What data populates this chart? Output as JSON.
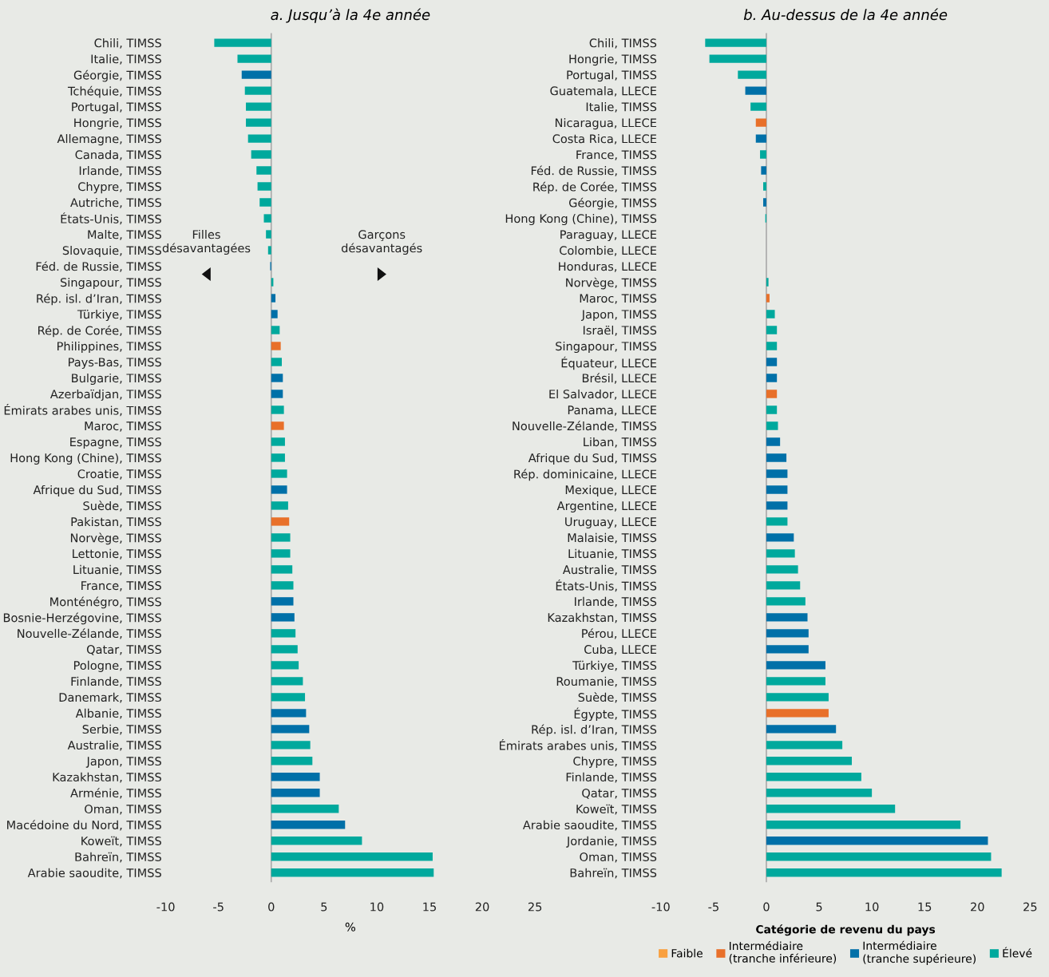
{
  "chart_data": [
    {
      "type": "bar",
      "orientation": "horizontal",
      "title": "a. Jusqu’à la 4e année",
      "xlabel": "%",
      "categories": [
        "Chili, TIMSS",
        "Italie, TIMSS",
        "Géorgie, TIMSS",
        "Tchéquie, TIMSS",
        "Portugal, TIMSS",
        "Hongrie, TIMSS",
        "Allemagne, TIMSS",
        "Canada, TIMSS",
        "Irlande, TIMSS",
        "Chypre, TIMSS",
        "Autriche, TIMSS",
        "États-Unis, TIMSS",
        "Malte, TIMSS",
        "Slovaquie, TIMSS",
        "Féd. de Russie, TIMSS",
        "Singapour, TIMSS",
        "Rép. isl. d’Iran, TIMSS",
        "Türkiye, TIMSS",
        "Rép. de Corée, TIMSS",
        "Philippines, TIMSS",
        "Pays-Bas, TIMSS",
        "Bulgarie, TIMSS",
        "Azerbaïdjan, TIMSS",
        "Émirats arabes unis, TIMSS",
        "Maroc, TIMSS",
        "Espagne, TIMSS",
        "Hong Kong (Chine), TIMSS",
        "Croatie, TIMSS",
        "Afrique du Sud, TIMSS",
        "Suède, TIMSS",
        "Pakistan, TIMSS",
        "Norvège, TIMSS",
        "Lettonie, TIMSS",
        "Lituanie, TIMSS",
        "France, TIMSS",
        "Monténégro, TIMSS",
        "Bosnie-Herzégovine, TIMSS",
        "Nouvelle-Zélande, TIMSS",
        "Qatar, TIMSS",
        "Pologne, TIMSS",
        "Finlande, TIMSS",
        "Danemark, TIMSS",
        "Albanie, TIMSS",
        "Serbie, TIMSS",
        "Australie, TIMSS",
        "Japon, TIMSS",
        "Kazakhstan, TIMSS",
        "Arménie, TIMSS",
        "Oman, TIMSS",
        "Macédoine du Nord, TIMSS",
        "Koweït, TIMSS",
        "Bahreïn, TIMSS",
        "Arabie saoudite, TIMSS"
      ],
      "values": [
        -5.4,
        -3.2,
        -2.8,
        -2.5,
        -2.4,
        -2.4,
        -2.2,
        -1.9,
        -1.4,
        -1.3,
        -1.1,
        -0.7,
        -0.5,
        -0.3,
        -0.1,
        0.2,
        0.4,
        0.6,
        0.8,
        0.9,
        1.0,
        1.1,
        1.1,
        1.2,
        1.2,
        1.3,
        1.3,
        1.5,
        1.5,
        1.6,
        1.7,
        1.8,
        1.8,
        2.0,
        2.1,
        2.1,
        2.2,
        2.3,
        2.5,
        2.6,
        3.0,
        3.2,
        3.3,
        3.6,
        3.7,
        3.9,
        4.6,
        4.6,
        6.4,
        7.0,
        8.6,
        15.3,
        15.4
      ],
      "colors": [
        "#00a99d",
        "#00a99d",
        "#0070a8",
        "#00a99d",
        "#00a99d",
        "#00a99d",
        "#00a99d",
        "#00a99d",
        "#00a99d",
        "#00a99d",
        "#00a99d",
        "#00a99d",
        "#00a99d",
        "#00a99d",
        "#0070a8",
        "#00a99d",
        "#0070a8",
        "#0070a8",
        "#00a99d",
        "#e8702a",
        "#00a99d",
        "#0070a8",
        "#0070a8",
        "#00a99d",
        "#e8702a",
        "#00a99d",
        "#00a99d",
        "#00a99d",
        "#0070a8",
        "#00a99d",
        "#e8702a",
        "#00a99d",
        "#00a99d",
        "#00a99d",
        "#00a99d",
        "#0070a8",
        "#0070a8",
        "#00a99d",
        "#00a99d",
        "#00a99d",
        "#00a99d",
        "#00a99d",
        "#0070a8",
        "#0070a8",
        "#00a99d",
        "#00a99d",
        "#0070a8",
        "#0070a8",
        "#00a99d",
        "#0070a8",
        "#00a99d",
        "#00a99d",
        "#00a99d"
      ],
      "xlim": [
        -10,
        25
      ],
      "xticks": [
        -10,
        -5,
        0,
        5,
        10,
        15,
        20,
        25
      ],
      "annotations": [
        "Filles\ndésavantagées",
        "Garçons\ndésavantagés"
      ],
      "ref_lines": [
        {
          "axis": "x",
          "value": 0,
          "color": "#aaaaaa"
        }
      ],
      "grid": false,
      "legend": false
    },
    {
      "type": "bar",
      "orientation": "horizontal",
      "title": "b. Au-dessus de la 4e année",
      "legend_title": "Catégorie de revenu du pays",
      "categories": [
        "Chili, TIMSS",
        "Hongrie, TIMSS",
        "Portugal, TIMSS",
        "Guatemala, LLECE",
        "Italie, TIMSS",
        "Nicaragua, LLECE",
        "Costa Rica, LLECE",
        "France, TIMSS",
        "Féd. de Russie, TIMSS",
        "Rép. de Corée, TIMSS",
        "Géorgie, TIMSS",
        "Hong Kong (Chine), TIMSS",
        "Paraguay, LLECE",
        "Colombie, LLECE",
        "Honduras, LLECE",
        "Norvège, TIMSS",
        "Maroc, TIMSS",
        "Japon, TIMSS",
        "Israël, TIMSS",
        "Singapour, TIMSS",
        "Équateur, LLECE",
        "Brésil, LLECE",
        "El Salvador, LLECE",
        "Panama, LLECE",
        "Nouvelle-Zélande, TIMSS",
        "Liban, TIMSS",
        "Afrique du Sud, TIMSS",
        "Rép. dominicaine, LLECE",
        "Mexique, LLECE",
        "Argentine, LLECE",
        "Uruguay, LLECE",
        "Malaisie, TIMSS",
        "Lituanie, TIMSS",
        "Australie, TIMSS",
        "États-Unis, TIMSS",
        "Irlande, TIMSS",
        "Kazakhstan, TIMSS",
        "Pérou, LLECE",
        "Cuba, LLECE",
        "Türkiye, TIMSS",
        "Roumanie, TIMSS",
        "Suède, TIMSS",
        "Égypte, TIMSS",
        "Rép. isl. d’Iran, TIMSS",
        "Émirats arabes unis, TIMSS",
        "Chypre, TIMSS",
        "Finlande, TIMSS",
        "Qatar, TIMSS",
        "Koweït, TIMSS",
        "Arabie saoudite, TIMSS",
        "Jordanie, TIMSS",
        "Oman, TIMSS",
        "Bahreïn, TIMSS"
      ],
      "series": [
        {
          "name": "Faible",
          "color": "#f9a03f",
          "values": [
            null,
            null,
            null,
            null,
            null,
            null,
            null,
            null,
            null,
            null,
            null,
            null,
            null,
            null,
            null,
            null,
            null,
            null,
            null,
            null,
            null,
            null,
            null,
            null,
            null,
            null,
            null,
            null,
            null,
            null,
            null,
            null,
            null,
            null,
            null,
            null,
            null,
            null,
            null,
            null,
            null,
            null,
            null,
            null,
            null,
            null,
            null,
            null,
            null,
            null,
            null,
            null,
            null
          ]
        },
        {
          "name": "Intermédiaire\n(tranche inférieure)",
          "color": "#e8702a",
          "values": [
            null,
            null,
            null,
            null,
            null,
            -1.0,
            null,
            null,
            null,
            null,
            null,
            null,
            null,
            null,
            null,
            null,
            0.3,
            null,
            null,
            null,
            null,
            null,
            1.0,
            null,
            null,
            null,
            null,
            null,
            null,
            null,
            null,
            null,
            null,
            null,
            null,
            null,
            null,
            null,
            null,
            null,
            null,
            null,
            5.9,
            null,
            null,
            null,
            null,
            null,
            null,
            null,
            null,
            null,
            null
          ]
        },
        {
          "name": "Intermédiaire\n(tranche supérieure)",
          "color": "#0070a8",
          "values": [
            null,
            null,
            null,
            -2.0,
            null,
            null,
            -1.0,
            null,
            -0.5,
            null,
            -0.3,
            null,
            null,
            null,
            null,
            null,
            null,
            null,
            null,
            null,
            1.0,
            1.0,
            null,
            null,
            null,
            1.3,
            1.9,
            2.0,
            2.0,
            2.0,
            null,
            2.6,
            null,
            null,
            null,
            null,
            3.9,
            4.0,
            4.0,
            5.6,
            null,
            null,
            null,
            6.6,
            null,
            null,
            null,
            null,
            null,
            null,
            21.0,
            null,
            null
          ]
        },
        {
          "name": "Élevé",
          "color": "#00a99d",
          "values": [
            -5.8,
            -5.4,
            -2.7,
            null,
            -1.5,
            null,
            null,
            -0.6,
            null,
            -0.3,
            null,
            -0.1,
            null,
            null,
            null,
            0.2,
            null,
            0.8,
            1.0,
            1.0,
            null,
            null,
            null,
            1.0,
            1.1,
            null,
            null,
            null,
            null,
            null,
            2.0,
            null,
            2.7,
            3.0,
            3.2,
            3.7,
            null,
            null,
            null,
            null,
            5.6,
            5.9,
            null,
            null,
            7.2,
            8.1,
            9.0,
            10.0,
            12.2,
            18.4,
            null,
            21.3,
            22.3
          ]
        }
      ],
      "xlim": [
        -10,
        25
      ],
      "xticks": [
        -10,
        -5,
        0,
        5,
        10,
        15,
        20,
        25
      ],
      "ref_lines": [
        {
          "axis": "x",
          "value": 0,
          "color": "#aaaaaa"
        }
      ],
      "grid": false,
      "legend": "bottom"
    }
  ]
}
